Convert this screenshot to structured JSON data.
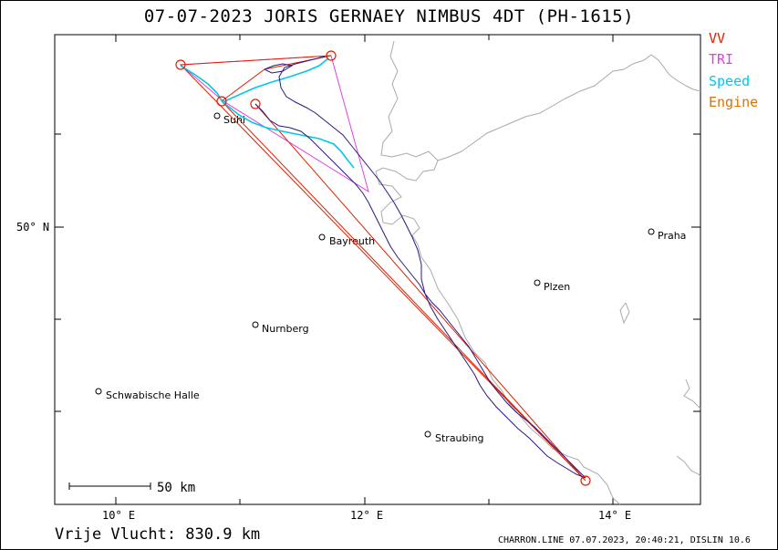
{
  "title": "07-07-2023   JORIS GERNAEY   NIMBUS 4DT (PH-1615)",
  "legend": [
    {
      "label": "VV",
      "color": "#e02000"
    },
    {
      "label": "TRI",
      "color": "#e040e0"
    },
    {
      "label": "Speed",
      "color": "#00c8e8"
    },
    {
      "label": "Engine",
      "color": "#e07000"
    }
  ],
  "axes": {
    "y_label": "50° N",
    "x_labels": [
      "10° E",
      "12° E",
      "14° E"
    ]
  },
  "scale_bar": "50  km",
  "cities": [
    {
      "name": "Suhl"
    },
    {
      "name": "Bayreuth"
    },
    {
      "name": "Praha"
    },
    {
      "name": "Plzen"
    },
    {
      "name": "Nurnberg"
    },
    {
      "name": "Schwabische Halle"
    },
    {
      "name": "Straubing"
    }
  ],
  "free_flight_label": "Vrije Vlucht:  830.9 km",
  "footer": "CHARRON.LINE 07.07.2023, 20:40:21, DISLIN 10.6",
  "colors": {
    "track": "#2a1880",
    "border": "#aaaaaa",
    "vv": "#e02000",
    "tri": "#e040e0",
    "speed": "#00c8e8"
  }
}
